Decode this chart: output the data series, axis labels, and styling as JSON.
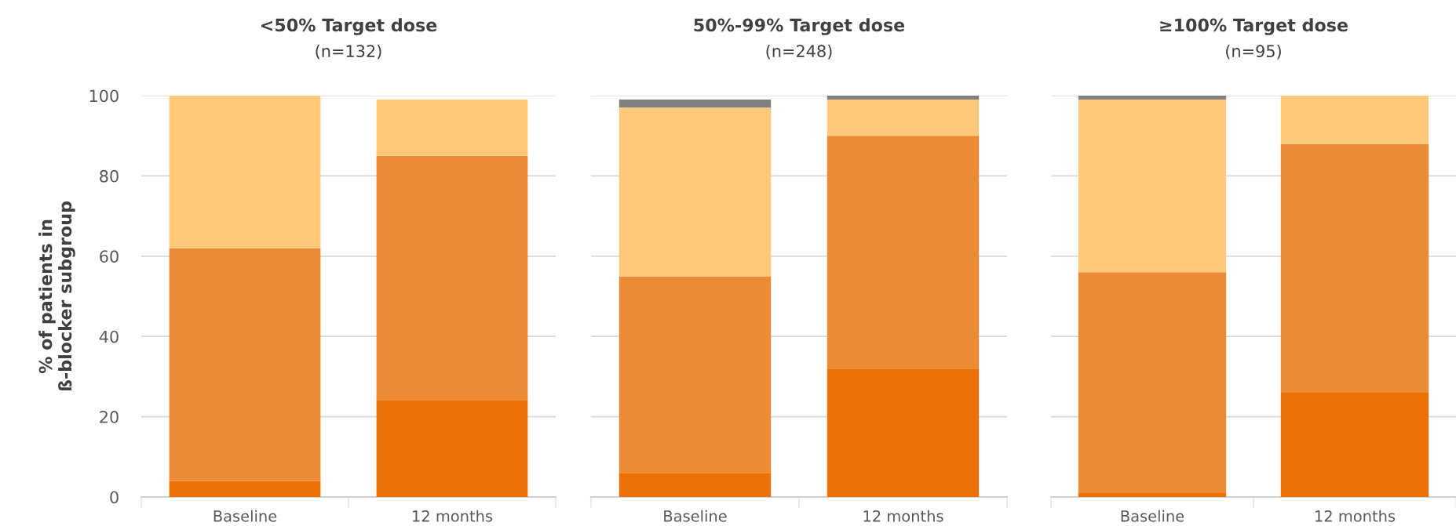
{
  "chart_data": [
    {
      "type": "bar",
      "stacked": true,
      "title": "<50% Target dose",
      "subtitle": "(n=132)",
      "ylabel": "% of patients in\nß-blocker subgroup",
      "categories": [
        "Baseline",
        "12 months"
      ],
      "ylim": [
        0,
        100
      ],
      "yticks": [
        0,
        20,
        40,
        60,
        80,
        100
      ],
      "grid": "y",
      "series": [
        {
          "color": "#ed7004",
          "values": [
            4,
            24
          ]
        },
        {
          "color": "#ed8b35",
          "values": [
            58,
            61
          ]
        },
        {
          "color": "#fec87b",
          "values": [
            38,
            14
          ]
        },
        {
          "color": "#808080",
          "values": [
            0,
            0
          ]
        }
      ]
    },
    {
      "type": "bar",
      "stacked": true,
      "title": "50%-99% Target dose",
      "subtitle": "(n=248)",
      "categories": [
        "Baseline",
        "12 months"
      ],
      "ylim": [
        0,
        100
      ],
      "yticks": [
        0,
        20,
        40,
        60,
        80,
        100
      ],
      "grid": "y",
      "tick_labels": "x",
      "series": [
        {
          "color": "#ed7004",
          "values": [
            6,
            32
          ]
        },
        {
          "color": "#ed8b35",
          "values": [
            49,
            58
          ]
        },
        {
          "color": "#fec87b",
          "values": [
            42,
            9
          ]
        },
        {
          "color": "#808080",
          "values": [
            2,
            1
          ]
        }
      ]
    },
    {
      "type": "bar",
      "stacked": true,
      "title": "≥100% Target dose",
      "subtitle": "(n=95)",
      "categories": [
        "Baseline",
        "12 months"
      ],
      "ylim": [
        0,
        100
      ],
      "yticks": [
        0,
        20,
        40,
        60,
        80,
        100
      ],
      "grid": "y",
      "tick_labels": "x",
      "series": [
        {
          "color": "#ed7004",
          "values": [
            1,
            26
          ]
        },
        {
          "color": "#ed8b35",
          "values": [
            55,
            62
          ]
        },
        {
          "color": "#fec87b",
          "values": [
            43,
            12
          ]
        },
        {
          "color": "#808080",
          "values": [
            1,
            0
          ]
        }
      ]
    }
  ]
}
